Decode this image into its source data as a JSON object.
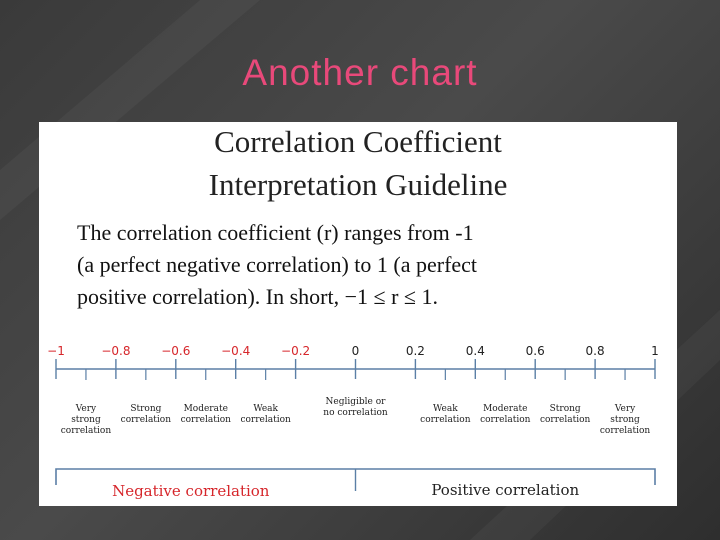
{
  "slide": {
    "title": "Another chart"
  },
  "card": {
    "heading_line1": "Correlation Coefficient",
    "heading_line2": "Interpretation Guideline",
    "body_line1": "The correlation coefficient (r) ranges from -1",
    "body_line2": "(a perfect negative correlation) to 1 (a perfect",
    "body_line3": "positive correlation). In short, −1 ≤ r ≤ 1."
  },
  "scale": {
    "ticks": [
      {
        "label": "−1",
        "value": -1.0,
        "color": "#d6262b"
      },
      {
        "label": "−0.8",
        "value": -0.8,
        "color": "#d6262b"
      },
      {
        "label": "−0.6",
        "value": -0.6,
        "color": "#d6262b"
      },
      {
        "label": "−0.4",
        "value": -0.4,
        "color": "#d6262b"
      },
      {
        "label": "−0.2",
        "value": -0.2,
        "color": "#d6262b"
      },
      {
        "label": "0",
        "value": 0.0,
        "color": "#222222"
      },
      {
        "label": "0.2",
        "value": 0.2,
        "color": "#222222"
      },
      {
        "label": "0.4",
        "value": 0.4,
        "color": "#222222"
      },
      {
        "label": "0.6",
        "value": 0.6,
        "color": "#222222"
      },
      {
        "label": "0.8",
        "value": 0.8,
        "color": "#222222"
      },
      {
        "label": "1",
        "value": 1.0,
        "color": "#222222"
      }
    ],
    "categories": [
      {
        "value": -0.9,
        "lines": [
          "Very",
          "strong",
          "correlation"
        ]
      },
      {
        "value": -0.7,
        "lines": [
          "Strong",
          "correlation"
        ]
      },
      {
        "value": -0.5,
        "lines": [
          "Moderate",
          "correlation"
        ]
      },
      {
        "value": -0.3,
        "lines": [
          "Weak",
          "correlation"
        ]
      },
      {
        "value": 0.0,
        "lines": [
          "Negligible or",
          "no correlation"
        ]
      },
      {
        "value": 0.3,
        "lines": [
          "Weak",
          "correlation"
        ]
      },
      {
        "value": 0.5,
        "lines": [
          "Moderate",
          "correlation"
        ]
      },
      {
        "value": 0.7,
        "lines": [
          "Strong",
          "correlation"
        ]
      },
      {
        "value": 0.9,
        "lines": [
          "Very",
          "strong",
          "correlation"
        ]
      }
    ],
    "negative_label": "Negative correlation",
    "positive_label": "Positive correlation",
    "negative_color": "#d6262b",
    "positive_color": "#222222",
    "axis_color": "#5b7fa6"
  }
}
